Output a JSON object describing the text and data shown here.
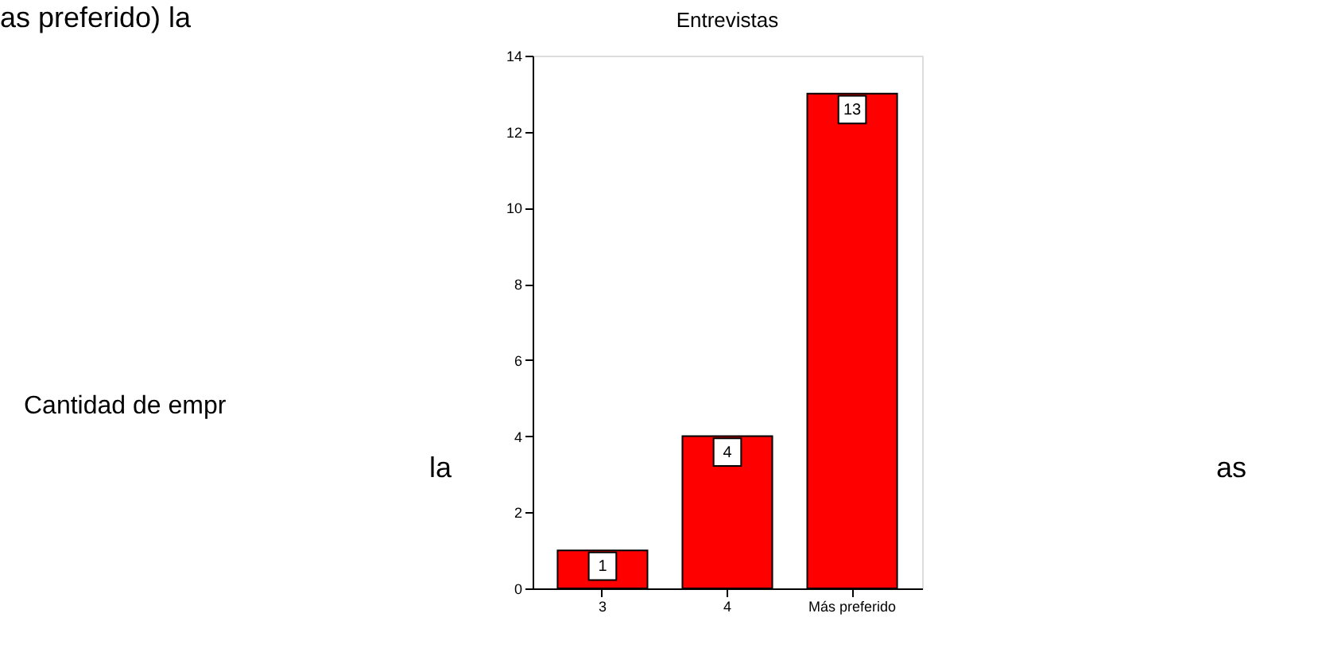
{
  "chart_data": {
    "type": "bar",
    "title": "Entrevistas",
    "categories": [
      "3",
      "4",
      "Más preferido"
    ],
    "values": [
      1,
      4,
      13
    ],
    "color": "#ff0000",
    "ylim": [
      0,
      14
    ],
    "yticks": [
      0,
      2,
      4,
      6,
      8,
      10,
      12,
      14
    ],
    "grid": false,
    "data_labels": true,
    "annotations": [
      "as preferido) la",
      "Cantidad de empr",
      "la",
      "as"
    ]
  }
}
